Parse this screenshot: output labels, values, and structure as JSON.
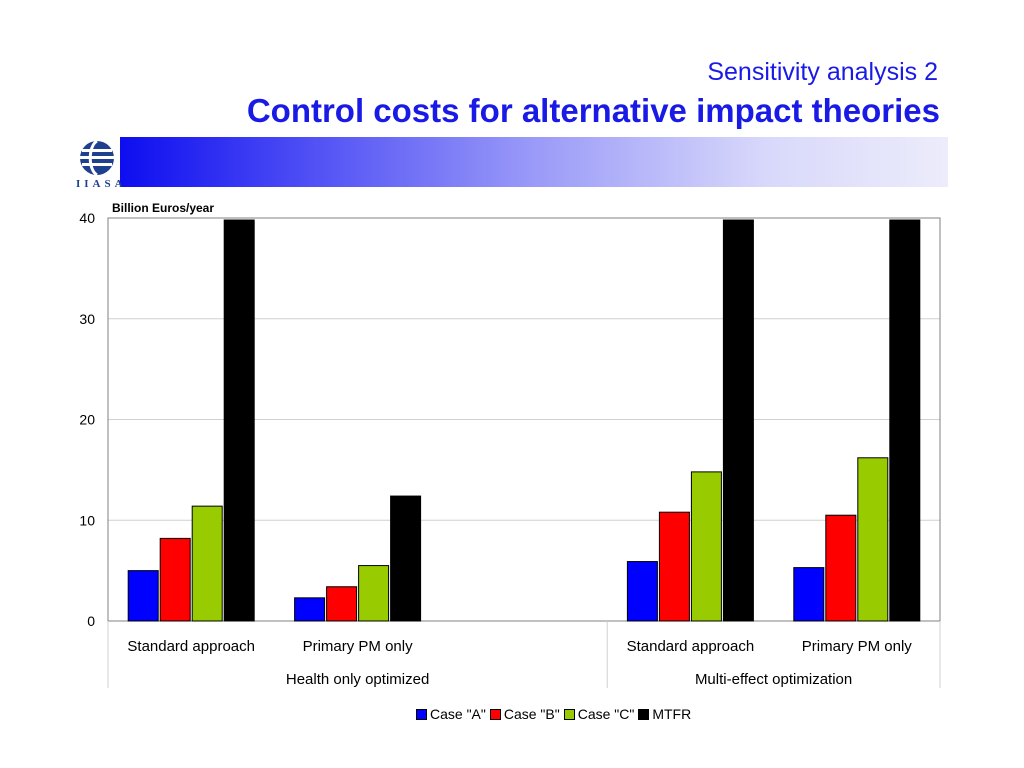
{
  "slide": {
    "subtitle": "Sensitivity analysis 2",
    "title": "Control costs for alternative impact theories",
    "logo_text": "IIASA",
    "logo_icon": "iiasa-globe-logo"
  },
  "chart_data": {
    "type": "bar",
    "ylabel": "Billion Euros/year",
    "ylim": [
      0,
      40
    ],
    "yticks": [
      0,
      10,
      20,
      30,
      40
    ],
    "grid": true,
    "legend_position": "bottom",
    "categories": [
      "Standard approach",
      "Primary PM only",
      "",
      "Standard approach",
      "Primary PM only"
    ],
    "groups": [
      {
        "label": "Health only optimized",
        "categories": [
          0,
          1,
          2
        ]
      },
      {
        "label": "Multi-effect optimization",
        "categories": [
          3,
          4
        ]
      }
    ],
    "series": [
      {
        "name": "Case \"A\"",
        "color": "#0000ff",
        "values": [
          5.0,
          2.3,
          null,
          5.9,
          5.3
        ]
      },
      {
        "name": "Case \"B\"",
        "color": "#ff0000",
        "values": [
          8.2,
          3.4,
          null,
          10.8,
          10.5
        ]
      },
      {
        "name": "Case \"C\"",
        "color": "#99cc00",
        "values": [
          11.4,
          5.5,
          null,
          14.8,
          16.2
        ]
      },
      {
        "name": "MTFR",
        "color": "#000000",
        "values": [
          39.8,
          12.4,
          null,
          39.8,
          39.8
        ]
      }
    ]
  }
}
